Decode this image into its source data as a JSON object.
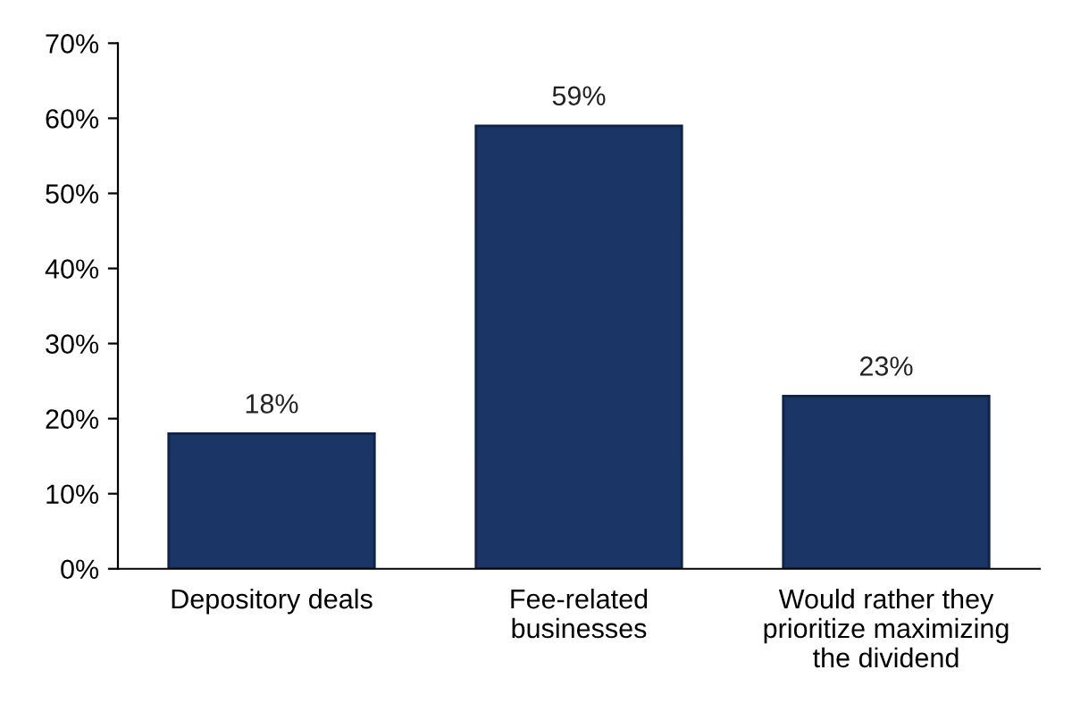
{
  "chart_data": {
    "type": "bar",
    "categories": [
      "Depository deals",
      "Fee-related\nbusinesses",
      "Would rather they\nprioritize maximizing\nthe dividend"
    ],
    "values": [
      18,
      59,
      23
    ],
    "color": "#1b3566",
    "value_labels": [
      "18%",
      "59%",
      "23%"
    ],
    "ylim": [
      0,
      70
    ],
    "yticks": [
      {
        "value": 0,
        "label": "0%"
      },
      {
        "value": 10,
        "label": "10%"
      },
      {
        "value": 20,
        "label": "20%"
      },
      {
        "value": 30,
        "label": "30%"
      },
      {
        "value": 40,
        "label": "40%"
      },
      {
        "value": 50,
        "label": "50%"
      },
      {
        "value": 60,
        "label": "60%"
      },
      {
        "value": 70,
        "label": "70%"
      }
    ],
    "grid": false,
    "legend": false
  }
}
